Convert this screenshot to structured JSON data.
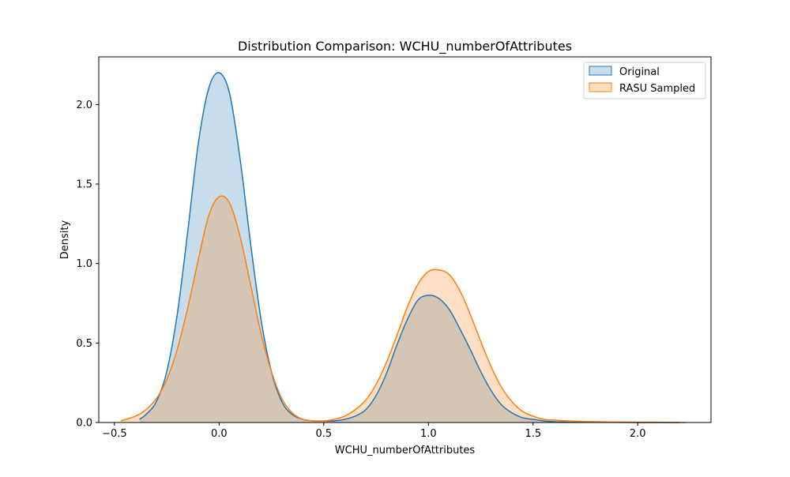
{
  "chart_data": {
    "type": "area",
    "title": "Distribution Comparison: WCHU_numberOfAttributes",
    "xlabel": "WCHU_numberOfAttributes",
    "ylabel": "Density",
    "xlim": [
      -0.575,
      2.35
    ],
    "ylim": [
      0,
      2.3
    ],
    "x_ticks": [
      -0.5,
      0.0,
      0.5,
      1.0,
      1.5,
      2.0
    ],
    "x_tick_labels": [
      "−0.5",
      "0.0",
      "0.5",
      "1.0",
      "1.5",
      "2.0"
    ],
    "y_ticks": [
      0.0,
      0.5,
      1.0,
      1.5,
      2.0
    ],
    "y_tick_labels": [
      "0.0",
      "0.5",
      "1.0",
      "1.5",
      "2.0"
    ],
    "grid": false,
    "legend_position": "top-right",
    "series": [
      {
        "name": "Original",
        "color": "#1f77b4",
        "x": [
          -0.38,
          -0.35,
          -0.3,
          -0.25,
          -0.2,
          -0.15,
          -0.1,
          -0.05,
          0.0,
          0.05,
          0.1,
          0.15,
          0.2,
          0.25,
          0.3,
          0.35,
          0.4,
          0.45,
          0.5,
          0.55,
          0.6,
          0.65,
          0.7,
          0.75,
          0.8,
          0.85,
          0.9,
          0.95,
          1.0,
          1.05,
          1.1,
          1.15,
          1.2,
          1.25,
          1.3,
          1.35,
          1.4,
          1.45,
          1.5,
          1.55,
          1.6,
          1.7,
          1.8,
          1.9,
          2.0,
          2.1,
          2.2
        ],
        "values": [
          0.02,
          0.05,
          0.13,
          0.32,
          0.68,
          1.2,
          1.75,
          2.1,
          2.2,
          2.07,
          1.66,
          1.13,
          0.65,
          0.32,
          0.13,
          0.05,
          0.02,
          0.01,
          0.01,
          0.01,
          0.02,
          0.04,
          0.08,
          0.17,
          0.31,
          0.49,
          0.65,
          0.77,
          0.8,
          0.78,
          0.71,
          0.59,
          0.46,
          0.32,
          0.2,
          0.11,
          0.06,
          0.03,
          0.02,
          0.01,
          0.005,
          0.002,
          0.001,
          0.001,
          0.0,
          0.0,
          0.0
        ]
      },
      {
        "name": "RASU Sampled",
        "color": "#ff7f0e",
        "x": [
          -0.47,
          -0.4,
          -0.35,
          -0.3,
          -0.25,
          -0.2,
          -0.15,
          -0.1,
          -0.05,
          0.0,
          0.05,
          0.1,
          0.15,
          0.2,
          0.25,
          0.3,
          0.35,
          0.4,
          0.45,
          0.5,
          0.55,
          0.6,
          0.65,
          0.7,
          0.75,
          0.8,
          0.85,
          0.9,
          0.95,
          1.0,
          1.05,
          1.1,
          1.15,
          1.2,
          1.25,
          1.3,
          1.35,
          1.4,
          1.45,
          1.5,
          1.55,
          1.6,
          1.7,
          1.8,
          1.9,
          2.0,
          2.1,
          2.23
        ],
        "values": [
          0.01,
          0.04,
          0.08,
          0.15,
          0.27,
          0.46,
          0.72,
          1.02,
          1.3,
          1.42,
          1.38,
          1.17,
          0.87,
          0.56,
          0.32,
          0.15,
          0.06,
          0.02,
          0.01,
          0.01,
          0.02,
          0.04,
          0.08,
          0.14,
          0.24,
          0.38,
          0.55,
          0.73,
          0.87,
          0.95,
          0.96,
          0.93,
          0.83,
          0.68,
          0.51,
          0.35,
          0.22,
          0.13,
          0.07,
          0.04,
          0.02,
          0.015,
          0.008,
          0.005,
          0.003,
          0.002,
          0.001,
          0.0
        ]
      }
    ]
  }
}
